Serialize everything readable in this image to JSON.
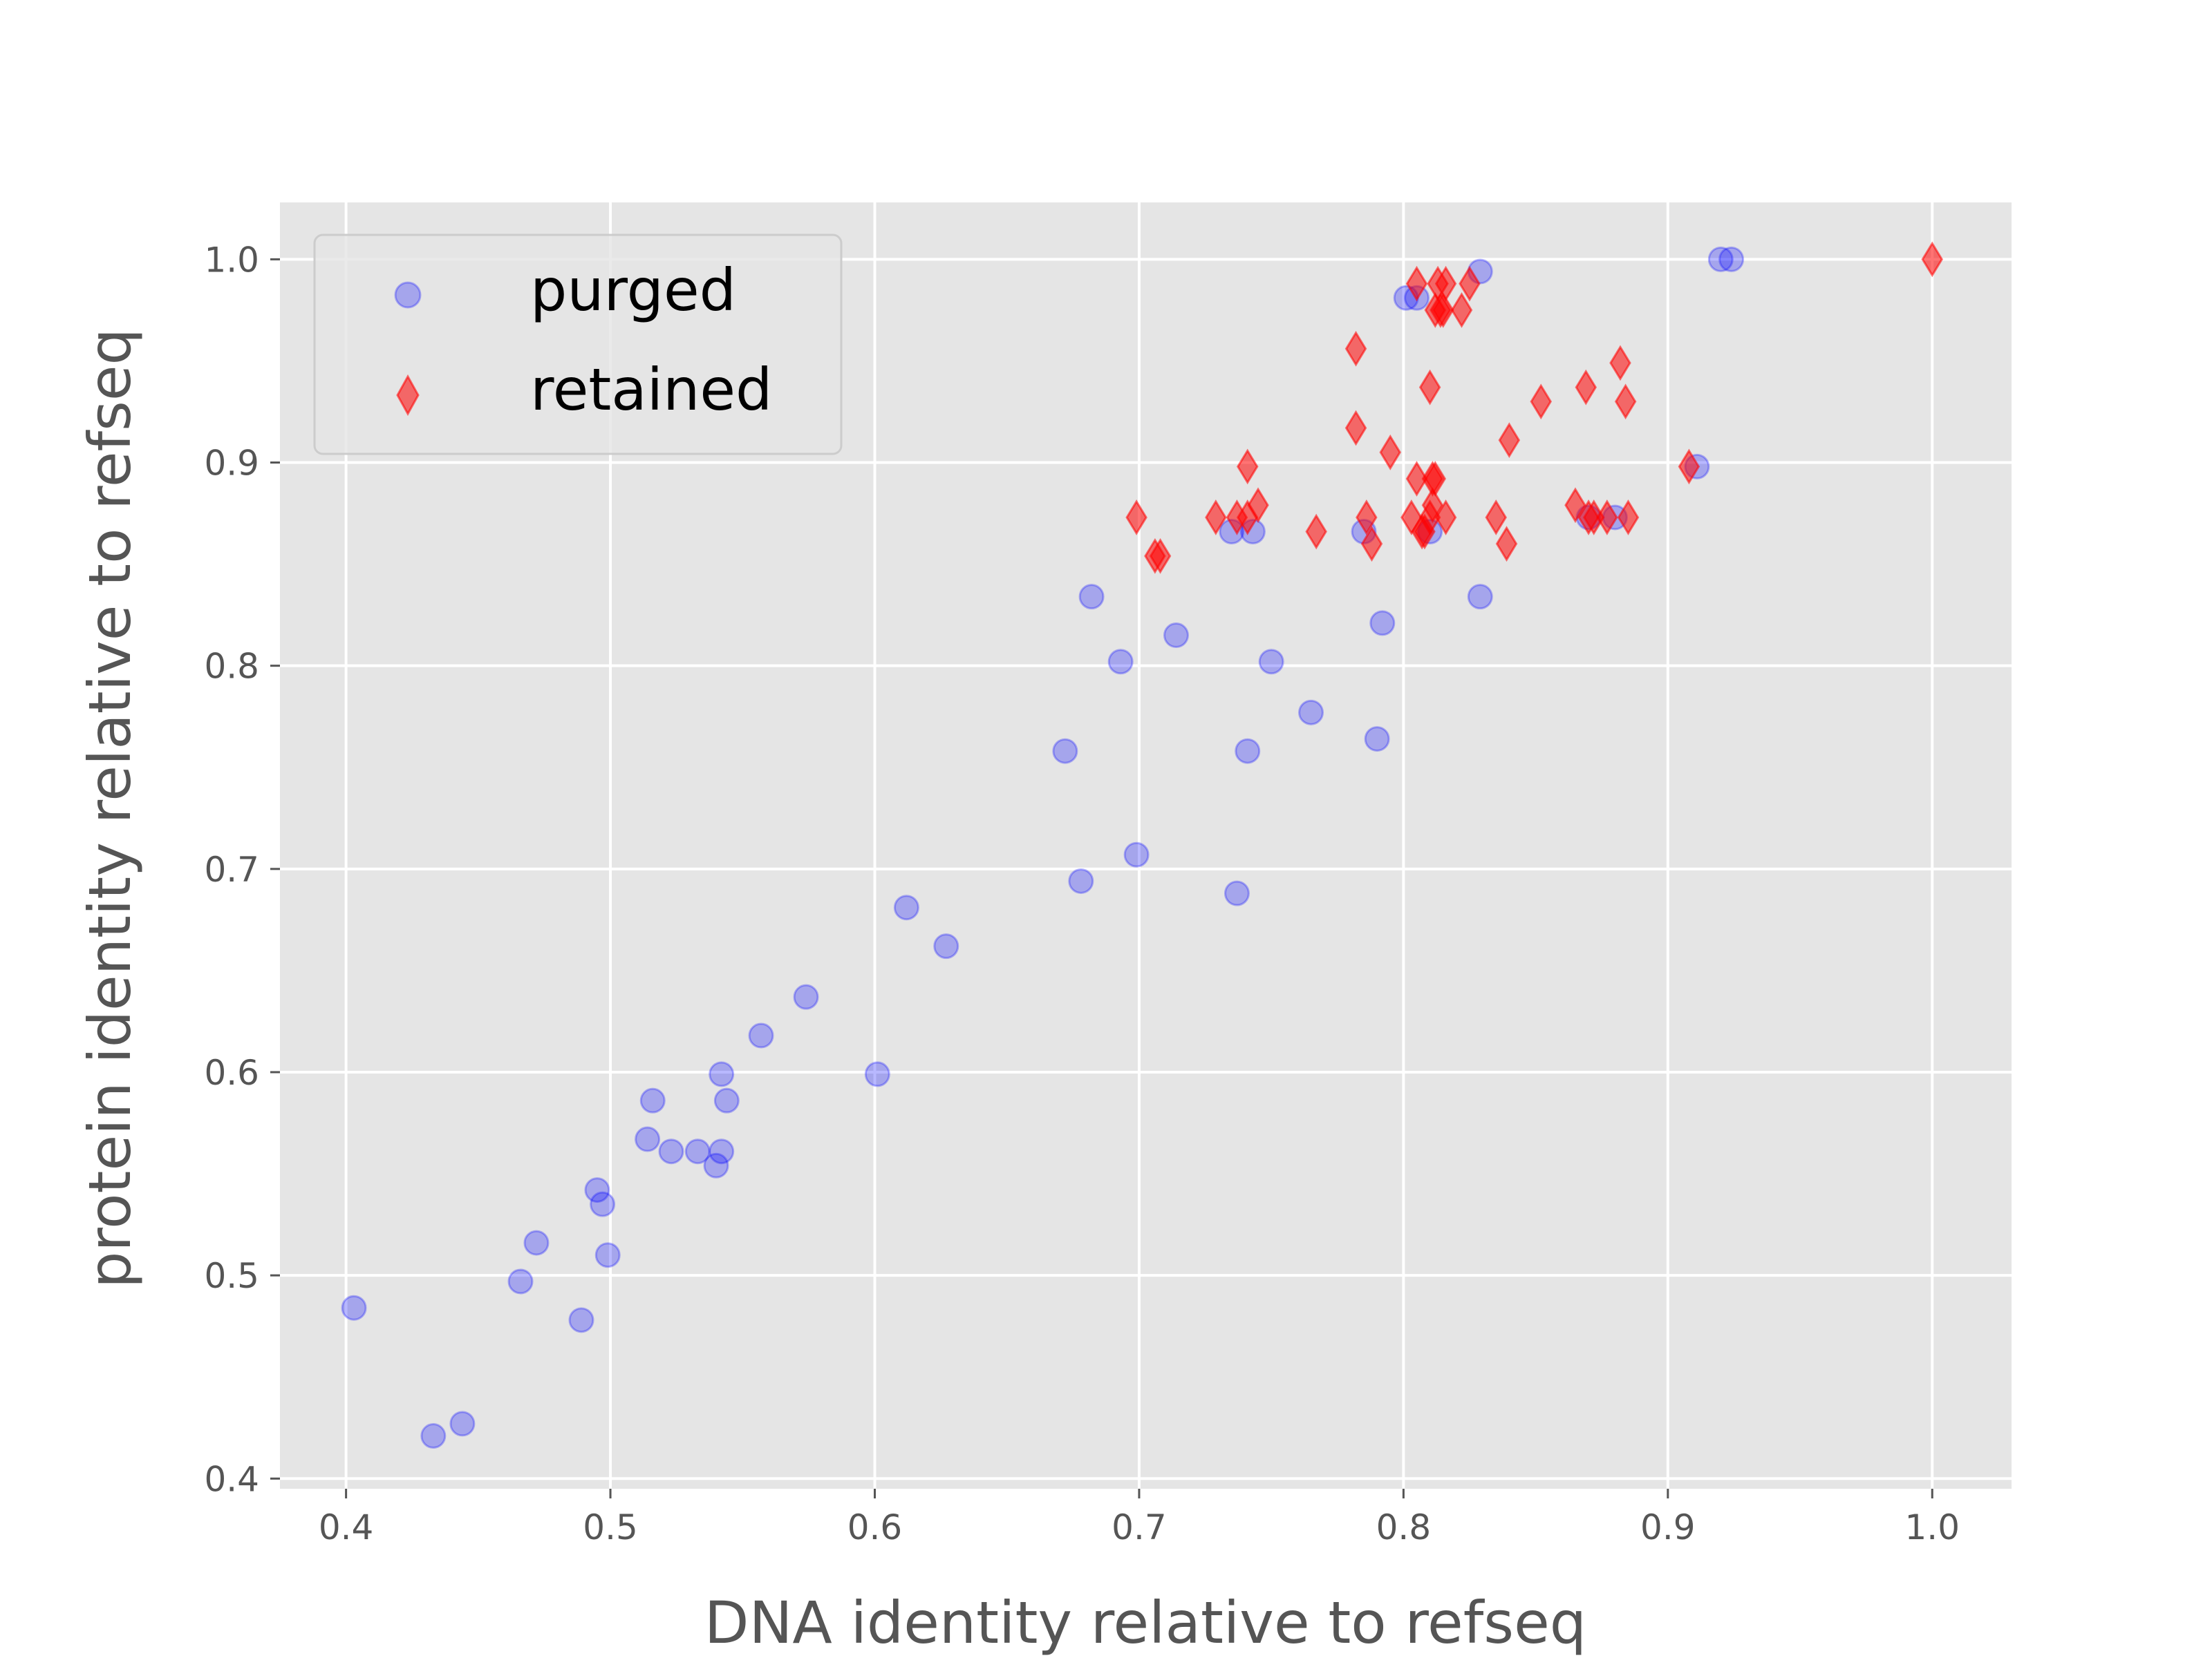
{
  "chart_data": {
    "type": "scatter",
    "xlabel": "DNA identity relative to refseq",
    "ylabel": "protein identity relative to refseq",
    "xlim": [
      0.375,
      1.03
    ],
    "ylim": [
      0.395,
      1.028
    ],
    "xticks": [
      0.4,
      0.5,
      0.6,
      0.7,
      0.8,
      0.9,
      1.0
    ],
    "yticks": [
      0.4,
      0.5,
      0.6,
      0.7,
      0.8,
      0.9,
      1.0
    ],
    "xtick_labels": [
      "0.4",
      "0.5",
      "0.6",
      "0.7",
      "0.8",
      "0.9",
      "1.0"
    ],
    "ytick_labels": [
      "0.4",
      "0.5",
      "0.6",
      "0.7",
      "0.8",
      "0.9",
      "1.0"
    ],
    "grid": true,
    "background": "#e5e5e5",
    "legend_position": "upper-left",
    "series": [
      {
        "name": "purged",
        "marker": "circle",
        "color": "#0000ff",
        "alpha": 0.28,
        "points": [
          [
            0.403,
            0.484
          ],
          [
            0.433,
            0.421
          ],
          [
            0.444,
            0.427
          ],
          [
            0.466,
            0.497
          ],
          [
            0.472,
            0.516
          ],
          [
            0.489,
            0.478
          ],
          [
            0.495,
            0.542
          ],
          [
            0.497,
            0.535
          ],
          [
            0.499,
            0.51
          ],
          [
            0.514,
            0.567
          ],
          [
            0.516,
            0.586
          ],
          [
            0.523,
            0.561
          ],
          [
            0.533,
            0.561
          ],
          [
            0.54,
            0.554
          ],
          [
            0.542,
            0.561
          ],
          [
            0.542,
            0.599
          ],
          [
            0.544,
            0.586
          ],
          [
            0.557,
            0.618
          ],
          [
            0.574,
            0.637
          ],
          [
            0.601,
            0.599
          ],
          [
            0.612,
            0.681
          ],
          [
            0.627,
            0.662
          ],
          [
            0.672,
            0.758
          ],
          [
            0.678,
            0.694
          ],
          [
            0.682,
            0.834
          ],
          [
            0.693,
            0.802
          ],
          [
            0.699,
            0.707
          ],
          [
            0.714,
            0.815
          ],
          [
            0.735,
            0.866
          ],
          [
            0.737,
            0.688
          ],
          [
            0.741,
            0.758
          ],
          [
            0.743,
            0.866
          ],
          [
            0.75,
            0.802
          ],
          [
            0.765,
            0.777
          ],
          [
            0.785,
            0.866
          ],
          [
            0.79,
            0.764
          ],
          [
            0.792,
            0.821
          ],
          [
            0.801,
            0.981
          ],
          [
            0.805,
            0.981
          ],
          [
            0.81,
            0.866
          ],
          [
            0.829,
            0.834
          ],
          [
            0.829,
            0.994
          ],
          [
            0.87,
            0.873
          ],
          [
            0.88,
            0.873
          ],
          [
            0.911,
            0.898
          ],
          [
            0.92,
            1.0
          ],
          [
            0.924,
            1.0
          ]
        ]
      },
      {
        "name": "retained",
        "marker": "thin_diamond",
        "color": "#ff0000",
        "alpha": 0.55,
        "points": [
          [
            0.699,
            0.873
          ],
          [
            0.706,
            0.854
          ],
          [
            0.708,
            0.854
          ],
          [
            0.729,
            0.873
          ],
          [
            0.737,
            0.873
          ],
          [
            0.741,
            0.873
          ],
          [
            0.741,
            0.898
          ],
          [
            0.745,
            0.879
          ],
          [
            0.767,
            0.866
          ],
          [
            0.782,
            0.956
          ],
          [
            0.782,
            0.917
          ],
          [
            0.786,
            0.873
          ],
          [
            0.788,
            0.86
          ],
          [
            0.795,
            0.905
          ],
          [
            0.803,
            0.873
          ],
          [
            0.805,
            0.892
          ],
          [
            0.805,
            0.988
          ],
          [
            0.807,
            0.866
          ],
          [
            0.808,
            0.866
          ],
          [
            0.81,
            0.937
          ],
          [
            0.81,
            0.873
          ],
          [
            0.811,
            0.879
          ],
          [
            0.811,
            0.892
          ],
          [
            0.812,
            0.892
          ],
          [
            0.812,
            0.975
          ],
          [
            0.813,
            0.988
          ],
          [
            0.814,
            0.975
          ],
          [
            0.815,
            0.975
          ],
          [
            0.816,
            0.873
          ],
          [
            0.816,
            0.988
          ],
          [
            0.822,
            0.975
          ],
          [
            0.825,
            0.988
          ],
          [
            0.835,
            0.873
          ],
          [
            0.839,
            0.86
          ],
          [
            0.84,
            0.911
          ],
          [
            0.852,
            0.93
          ],
          [
            0.865,
            0.879
          ],
          [
            0.869,
            0.937
          ],
          [
            0.87,
            0.873
          ],
          [
            0.872,
            0.873
          ],
          [
            0.877,
            0.873
          ],
          [
            0.882,
            0.949
          ],
          [
            0.884,
            0.93
          ],
          [
            0.885,
            0.873
          ],
          [
            0.908,
            0.898
          ],
          [
            1.0,
            1.0
          ]
        ]
      }
    ]
  }
}
